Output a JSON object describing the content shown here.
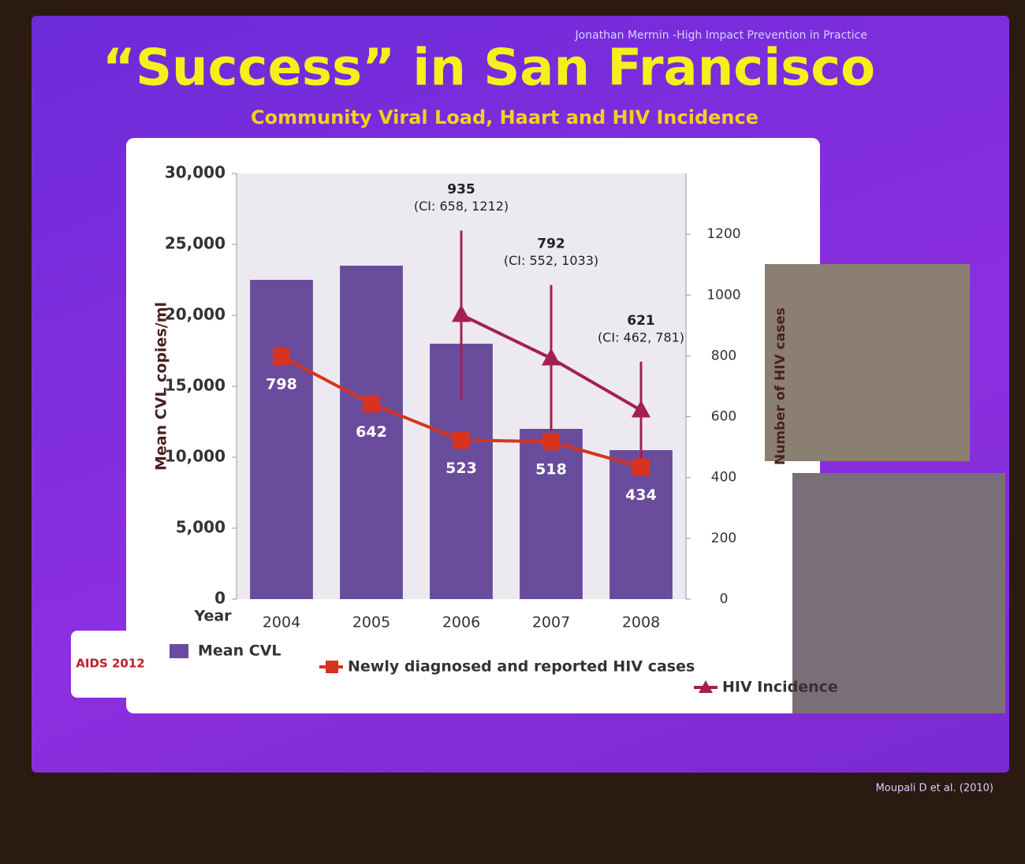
{
  "chart_data": {
    "type": "bar",
    "title": "“Success” in San Francisco",
    "subtitle": "Community Viral Load, Haart  and HIV Incidence",
    "author": "Jonathan Mermin -High Impact Prevention in Practice",
    "citation": "Moupali D et al. (2010)",
    "logo": "AIDS 2012",
    "x_label": "Year",
    "y_label": "Mean CVL copies/ml",
    "y2_label": "Number of HIV cases",
    "categories": [
      "2004",
      "2005",
      "2006",
      "2007",
      "2008"
    ],
    "ylim": [
      0,
      30000
    ],
    "yticks": [
      0,
      {
        "value": 5000,
        "label": "5,000"
      },
      {
        "value": 10000,
        "label": "10,000"
      },
      {
        "value": 15000,
        "label": "15,000"
      },
      {
        "value": 20000,
        "label": "20,000"
      },
      {
        "value": 25000,
        "label": "25,000"
      },
      {
        "value": 30000,
        "label": "30,000"
      }
    ],
    "y2lim": [
      0,
      1400
    ],
    "y2ticks": [
      0,
      200,
      400,
      600,
      800,
      1000,
      1200
    ],
    "series": [
      {
        "name": "Mean CVL",
        "type": "bar",
        "color": "#6a4c9c",
        "values": [
          22500,
          23500,
          18000,
          12000,
          10500
        ]
      },
      {
        "name": "Newly diagnosed and reported HIV cases",
        "type": "line",
        "marker": "square",
        "axis": "y2",
        "color": "#d8331f",
        "values": [
          798,
          642,
          523,
          518,
          434
        ]
      },
      {
        "name": "HIV Incidence",
        "type": "line",
        "marker": "triangle",
        "axis": "y2",
        "color": "#a3204f",
        "values": [
          null,
          null,
          935,
          792,
          621
        ],
        "lower": [
          null,
          null,
          658,
          552,
          462
        ],
        "upper": [
          null,
          null,
          1212,
          1033,
          781
        ],
        "ci_labels": [
          null,
          null,
          "(CI: 658, 1212)",
          "(CI: 552, 1033)",
          "(CI: 462, 781)"
        ]
      }
    ]
  }
}
